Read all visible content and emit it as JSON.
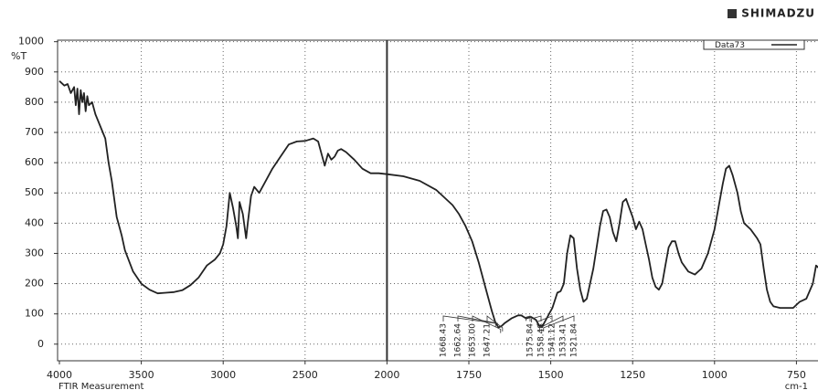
{
  "chart_data": {
    "type": "line",
    "brand": "SHIMADZU",
    "subtitle": "FTIR Measurement",
    "xlabel": "cm-1",
    "ylabel": "%T",
    "xlim": [
      4000,
      680
    ],
    "xticks": [
      4000,
      3500,
      3000,
      2500,
      2000,
      1750,
      1500,
      1250,
      1000,
      750
    ],
    "ylim": [
      -55,
      1005
    ],
    "yticks": [
      0,
      100,
      200,
      300,
      400,
      500,
      600,
      700,
      800,
      900,
      1000
    ],
    "grid": true,
    "legend": "top-right",
    "series": [
      {
        "name": "Data73",
        "color": "#222222",
        "x": [
          4000,
          3970,
          3950,
          3930,
          3910,
          3900,
          3890,
          3880,
          3870,
          3860,
          3850,
          3840,
          3830,
          3820,
          3800,
          3780,
          3750,
          3720,
          3700,
          3680,
          3660,
          3650,
          3620,
          3600,
          3550,
          3500,
          3450,
          3400,
          3350,
          3300,
          3250,
          3200,
          3150,
          3100,
          3050,
          3020,
          3000,
          2980,
          2960,
          2940,
          2920,
          2910,
          2900,
          2880,
          2860,
          2850,
          2830,
          2810,
          2780,
          2750,
          2700,
          2650,
          2600,
          2550,
          2500,
          2450,
          2420,
          2400,
          2380,
          2360,
          2340,
          2320,
          2300,
          2280,
          2250,
          2200,
          2150,
          2100,
          2050,
          2000,
          1950,
          1900,
          1850,
          1800,
          1780,
          1760,
          1740,
          1720,
          1700,
          1680,
          1670,
          1660,
          1650,
          1640,
          1620,
          1600,
          1590,
          1575,
          1560,
          1545,
          1535,
          1525,
          1510,
          1495,
          1480,
          1470,
          1460,
          1450,
          1440,
          1430,
          1420,
          1410,
          1400,
          1390,
          1370,
          1350,
          1340,
          1330,
          1320,
          1310,
          1300,
          1290,
          1280,
          1270,
          1260,
          1250,
          1240,
          1230,
          1220,
          1210,
          1200,
          1190,
          1180,
          1170,
          1160,
          1150,
          1140,
          1130,
          1120,
          1110,
          1100,
          1080,
          1060,
          1040,
          1020,
          1000,
          990,
          975,
          965,
          955,
          945,
          930,
          920,
          910,
          890,
          870,
          860,
          850,
          840,
          830,
          820,
          800,
          780,
          760,
          740,
          720,
          700,
          690,
          680
        ],
        "values": [
          870,
          855,
          860,
          830,
          850,
          790,
          845,
          760,
          840,
          800,
          830,
          770,
          820,
          790,
          800,
          760,
          720,
          680,
          600,
          540,
          460,
          420,
          360,
          310,
          240,
          200,
          180,
          168,
          170,
          172,
          178,
          195,
          220,
          260,
          280,
          300,
          330,
          390,
          500,
          450,
          390,
          350,
          470,
          430,
          350,
          400,
          490,
          520,
          500,
          530,
          580,
          620,
          660,
          670,
          672,
          680,
          670,
          630,
          590,
          630,
          610,
          620,
          640,
          645,
          635,
          610,
          580,
          565,
          565,
          562,
          555,
          540,
          510,
          460,
          430,
          390,
          340,
          270,
          190,
          110,
          75,
          55,
          60,
          70,
          85,
          95,
          95,
          85,
          90,
          80,
          60,
          60,
          90,
          120,
          170,
          175,
          200,
          300,
          360,
          350,
          250,
          180,
          140,
          150,
          250,
          390,
          440,
          445,
          420,
          370,
          340,
          400,
          470,
          480,
          450,
          420,
          380,
          405,
          380,
          330,
          280,
          220,
          190,
          180,
          200,
          260,
          320,
          340,
          340,
          300,
          270,
          240,
          230,
          250,
          300,
          380,
          440,
          530,
          580,
          590,
          560,
          500,
          440,
          400,
          380,
          350,
          330,
          250,
          180,
          140,
          125,
          120,
          120,
          120,
          140,
          150,
          200,
          260,
          250
        ]
      }
    ],
    "annotations": [
      {
        "x": 1668.43,
        "label": "1668.43"
      },
      {
        "x": 1662.64,
        "label": "1662.64"
      },
      {
        "x": 1653.0,
        "label": "1653.00"
      },
      {
        "x": 1647.21,
        "label": "1647.21"
      },
      {
        "x": 1575.84,
        "label": "1575.84"
      },
      {
        "x": 1558.48,
        "label": "1558.48"
      },
      {
        "x": 1541.12,
        "label": "1541.12"
      },
      {
        "x": 1533.41,
        "label": "1533.41"
      },
      {
        "x": 1521.84,
        "label": "1521.84"
      }
    ]
  }
}
